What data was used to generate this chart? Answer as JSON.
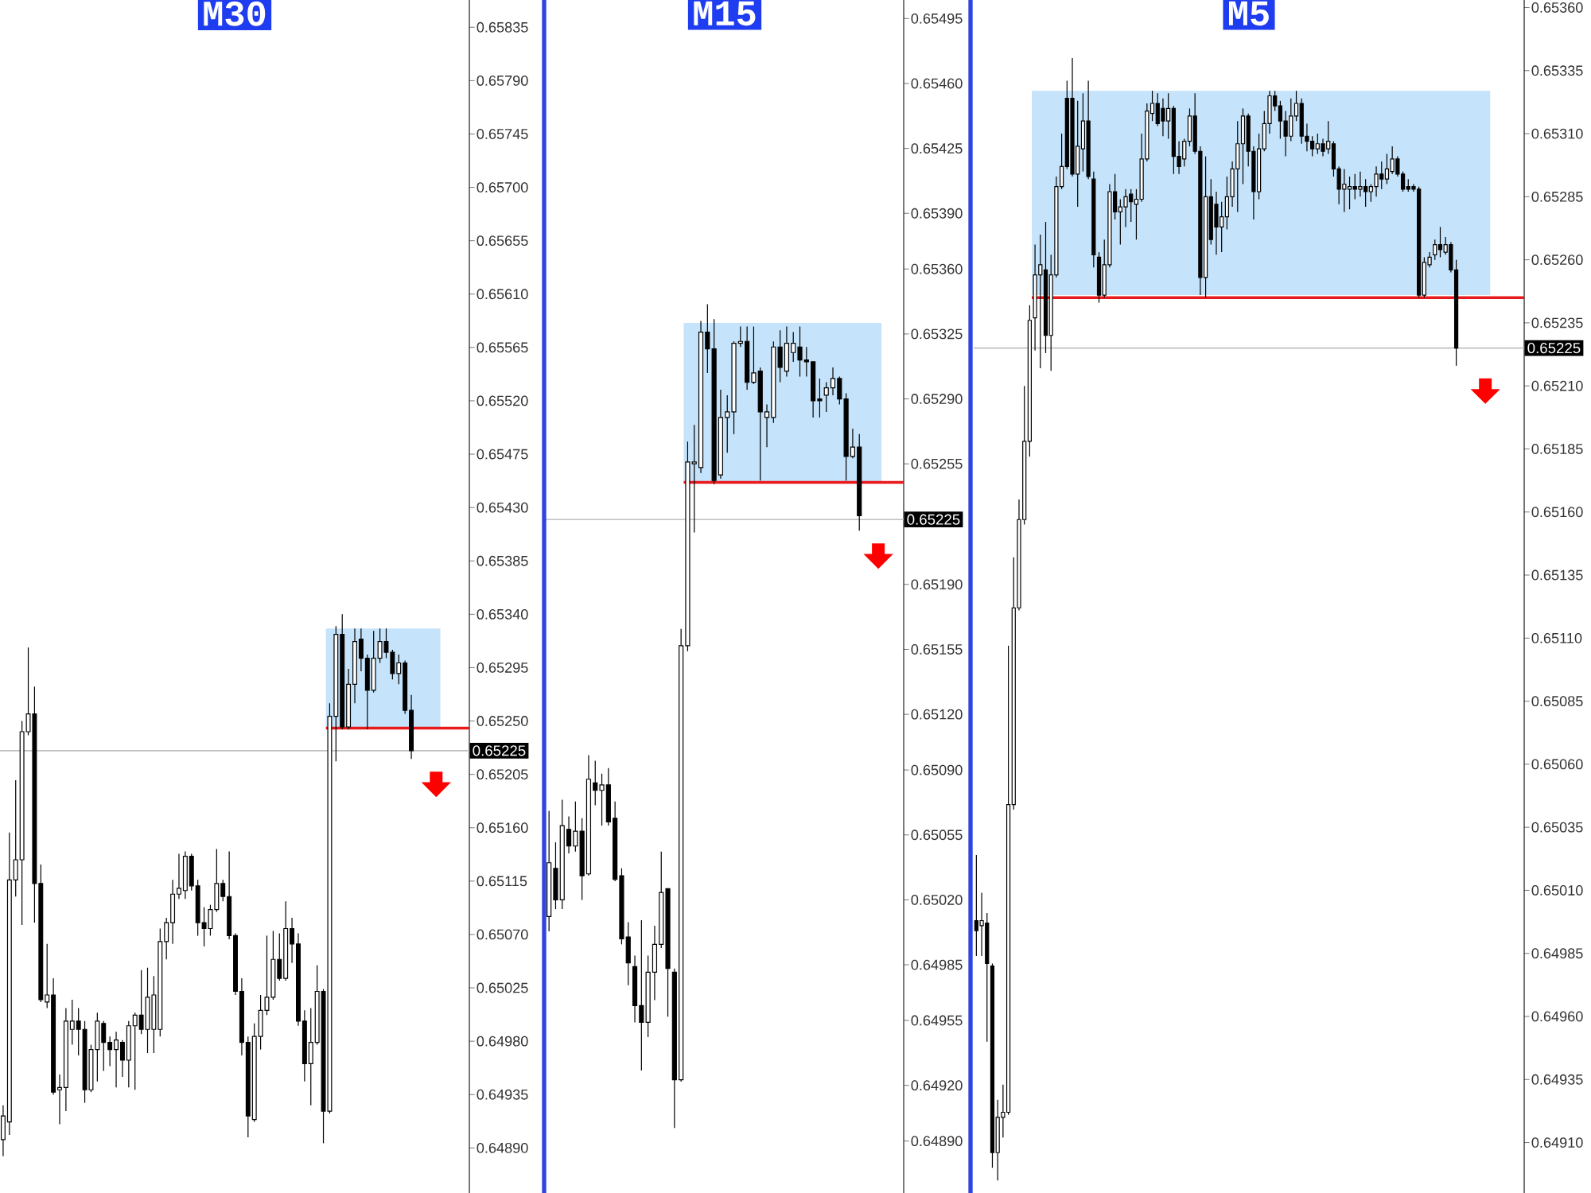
{
  "chart_data": [
    {
      "type": "candlestick",
      "title": "M30",
      "categories": [
        null,
        null,
        null,
        null,
        null,
        null,
        null,
        null,
        null,
        null,
        null,
        null,
        null,
        null,
        null,
        null,
        null,
        null,
        null,
        null,
        null,
        null,
        null,
        null,
        null,
        null,
        null,
        null,
        null,
        null,
        null,
        null,
        null,
        null,
        null,
        null,
        null,
        null,
        null,
        null,
        null,
        null,
        null,
        null,
        null,
        null,
        null,
        null,
        null,
        null,
        null,
        null,
        null,
        null,
        null,
        null,
        null,
        null,
        null,
        null,
        null,
        null,
        null,
        null,
        null,
        null
      ],
      "ohlc": [
        [
          0.64897,
          0.64926,
          0.64883,
          0.64917
        ],
        [
          0.64912,
          0.65156,
          0.64901,
          0.65116
        ],
        [
          0.65116,
          0.652,
          0.65102,
          0.65133
        ],
        [
          0.65133,
          0.6525,
          0.65078,
          0.65241
        ],
        [
          0.65241,
          0.65312,
          0.65238,
          0.65256
        ],
        [
          0.65256,
          0.65279,
          0.6508,
          0.65113
        ],
        [
          0.65113,
          0.65129,
          0.65013,
          0.65015
        ],
        [
          0.65013,
          0.65062,
          0.65008,
          0.65019
        ],
        [
          0.65019,
          0.65033,
          0.64935,
          0.64937
        ],
        [
          0.64939,
          0.64952,
          0.6491,
          0.64941
        ],
        [
          0.64941,
          0.65008,
          0.64921,
          0.64997
        ],
        [
          0.6499,
          0.65015,
          0.64977,
          0.64997
        ],
        [
          0.64997,
          0.65008,
          0.64968,
          0.6499
        ],
        [
          0.6499,
          0.64997,
          0.64928,
          0.64939
        ],
        [
          0.64939,
          0.64977,
          0.64937,
          0.64973
        ],
        [
          0.64973,
          0.65004,
          0.64946,
          0.64997
        ],
        [
          0.64995,
          0.64997,
          0.64955,
          0.64979
        ],
        [
          0.64979,
          0.64984,
          0.64959,
          0.64973
        ],
        [
          0.64973,
          0.64988,
          0.64941,
          0.64981
        ],
        [
          0.64979,
          0.64981,
          0.6495,
          0.64964
        ],
        [
          0.64964,
          0.64997,
          0.64941,
          0.64993
        ],
        [
          0.64993,
          0.65004,
          0.64939,
          0.65002
        ],
        [
          0.65002,
          0.6504,
          0.64986,
          0.6499
        ],
        [
          0.6499,
          0.65042,
          0.6497,
          0.65017
        ],
        [
          0.6499,
          0.65035,
          0.6497,
          0.65019
        ],
        [
          0.6499,
          0.65075,
          0.64984,
          0.65064
        ],
        [
          0.65064,
          0.65084,
          0.65049,
          0.6508
        ],
        [
          0.6508,
          0.65116,
          0.65062,
          0.65104
        ],
        [
          0.65104,
          0.65138,
          0.651,
          0.65109
        ],
        [
          0.65107,
          0.6514,
          0.651,
          0.65136
        ],
        [
          0.65136,
          0.65138,
          0.65107,
          0.65111
        ],
        [
          0.65111,
          0.65116,
          0.65069,
          0.6508
        ],
        [
          0.6508,
          0.65093,
          0.6506,
          0.65075
        ],
        [
          0.65075,
          0.65095,
          0.65069,
          0.65091
        ],
        [
          0.65091,
          0.65142,
          0.65089,
          0.65113
        ],
        [
          0.65113,
          0.65116,
          0.65098,
          0.65102
        ],
        [
          0.65102,
          0.6514,
          0.65066,
          0.65069
        ],
        [
          0.65069,
          0.65071,
          0.65019,
          0.65022
        ],
        [
          0.65022,
          0.65033,
          0.64968,
          0.64979
        ],
        [
          0.64979,
          0.64984,
          0.64899,
          0.64917
        ],
        [
          0.64914,
          0.64995,
          0.64912,
          0.64984
        ],
        [
          0.64984,
          0.65019,
          0.64973,
          0.65006
        ],
        [
          0.65006,
          0.65069,
          0.65002,
          0.65017
        ],
        [
          0.65017,
          0.65073,
          0.65015,
          0.65049
        ],
        [
          0.65049,
          0.65071,
          0.65031,
          0.65033
        ],
        [
          0.65033,
          0.65098,
          0.65031,
          0.65075
        ],
        [
          0.65075,
          0.65084,
          0.65046,
          0.65062
        ],
        [
          0.65062,
          0.65071,
          0.64993,
          0.64997
        ],
        [
          0.64997,
          0.65006,
          0.64946,
          0.64961
        ],
        [
          0.64961,
          0.65008,
          0.64926,
          0.64979
        ],
        [
          0.64979,
          0.65044,
          0.64977,
          0.65022
        ],
        [
          0.65022,
          0.65024,
          0.64894,
          0.64921
        ],
        [
          0.64921,
          0.65265,
          0.64919,
          0.65254
        ],
        [
          0.65254,
          0.6533,
          0.65216,
          0.65323
        ],
        [
          0.65323,
          0.6534,
          0.65243,
          0.65245
        ],
        [
          0.65245,
          0.65294,
          0.65243,
          0.65281
        ],
        [
          0.65281,
          0.65328,
          0.65265,
          0.65317
        ],
        [
          0.65319,
          0.65328,
          0.65292,
          0.65303
        ],
        [
          0.65303,
          0.65306,
          0.65243,
          0.65276
        ],
        [
          0.65276,
          0.65326,
          0.65274,
          0.65303
        ],
        [
          0.65303,
          0.65328,
          0.65299,
          0.65317
        ],
        [
          0.65317,
          0.65328,
          0.65303,
          0.65308
        ],
        [
          0.65308,
          0.6531,
          0.65285,
          0.6529
        ],
        [
          0.6529,
          0.65306,
          0.65281,
          0.65299
        ],
        [
          0.65299,
          0.65301,
          0.65256,
          0.65259
        ],
        [
          0.65259,
          0.65272,
          0.65218,
          0.65225
        ]
      ],
      "ylim": [
        0.64852,
        0.65858
      ],
      "yticks": [
        0.65835,
        {
          "value": 0.6579,
          "label": "0.65790"
        },
        0.65745,
        {
          "value": 0.657,
          "label": "0.65700"
        },
        0.65655,
        {
          "value": 0.6561,
          "label": "0.65610"
        },
        0.65565,
        {
          "value": 0.6552,
          "label": "0.65520"
        },
        0.65475,
        {
          "value": 0.6543,
          "label": "0.65430"
        },
        0.65385,
        {
          "value": 0.6534,
          "label": "0.65340"
        },
        0.65295,
        {
          "value": 0.6525,
          "label": "0.65250"
        },
        0.65205,
        {
          "value": 0.6516,
          "label": "0.65160"
        },
        0.65115,
        {
          "value": 0.6507,
          "label": "0.65070"
        },
        0.65025,
        {
          "value": 0.6498,
          "label": "0.64980"
        },
        0.64935,
        {
          "value": 0.6489,
          "label": "0.64890"
        }
      ],
      "bands": [
        {
          "axis": "y",
          "from": 0.65244,
          "to": 0.65328,
          "color": "#c5e3fa"
        }
      ],
      "ref_lines": [
        {
          "axis": "y",
          "value": 0.65225,
          "label": "0.65225",
          "color": "#c0c0c0"
        },
        {
          "axis": "y",
          "value": 0.65244,
          "color": "#e8191b"
        }
      ]
    },
    {
      "type": "candlestick",
      "title": "M15",
      "categories": [
        null,
        null,
        null,
        null,
        null,
        null,
        null,
        null,
        null,
        null,
        null,
        null,
        null,
        null,
        null,
        null,
        null,
        null,
        null,
        null,
        null,
        null,
        null,
        null,
        null,
        null,
        null,
        null,
        null,
        null,
        null,
        null,
        null,
        null,
        null,
        null,
        null,
        null,
        null,
        null,
        null,
        null,
        null,
        null,
        null,
        null,
        null,
        null
      ],
      "ohlc": [
        [
          0.65011,
          0.65068,
          0.65003,
          0.6504
        ],
        [
          0.65037,
          0.65051,
          0.65015,
          0.6502
        ],
        [
          0.6502,
          0.65074,
          0.65015,
          0.6506
        ],
        [
          0.65058,
          0.65065,
          0.65045,
          0.65049
        ],
        [
          0.65049,
          0.65073,
          0.65046,
          0.65057
        ],
        [
          0.65057,
          0.65064,
          0.6502,
          0.65033
        ],
        [
          0.65034,
          0.65098,
          0.65033,
          0.65085
        ],
        [
          0.65083,
          0.65095,
          0.65071,
          0.65079
        ],
        [
          0.65079,
          0.65088,
          0.6506,
          0.65082
        ],
        [
          0.65082,
          0.65091,
          0.6506,
          0.65062
        ],
        [
          0.65064,
          0.65073,
          0.6503,
          0.65031
        ],
        [
          0.65033,
          0.65037,
          0.64996,
          0.64999
        ],
        [
          0.65,
          0.65008,
          0.64974,
          0.64986
        ],
        [
          0.64984,
          0.6499,
          0.64954,
          0.64963
        ],
        [
          0.64963,
          0.65009,
          0.64928,
          0.64954
        ],
        [
          0.64954,
          0.6499,
          0.64946,
          0.64981
        ],
        [
          0.64981,
          0.65006,
          0.64966,
          0.64996
        ],
        [
          0.64996,
          0.65046,
          0.64994,
          0.65024
        ],
        [
          0.65026,
          0.65026,
          0.64957,
          0.64983
        ],
        [
          0.64981,
          0.64983,
          0.64897,
          0.64923
        ],
        [
          0.64923,
          0.65166,
          0.64922,
          0.65157
        ],
        [
          0.65157,
          0.65267,
          0.65154,
          0.65256
        ],
        [
          0.65255,
          0.65276,
          0.65218,
          0.65256
        ],
        [
          0.65253,
          0.65332,
          0.6525,
          0.65326
        ],
        [
          0.65326,
          0.65341,
          0.65304,
          0.65317
        ],
        [
          0.65317,
          0.65333,
          0.65244,
          0.65246
        ],
        [
          0.65249,
          0.65295,
          0.65247,
          0.6528
        ],
        [
          0.6528,
          0.65292,
          0.65261,
          0.65283
        ],
        [
          0.65283,
          0.65321,
          0.65271,
          0.6532
        ],
        [
          0.6532,
          0.65329,
          0.65318,
          0.65321
        ],
        [
          0.65321,
          0.65329,
          0.65295,
          0.65299
        ],
        [
          0.65299,
          0.65329,
          0.65298,
          0.65304
        ],
        [
          0.65305,
          0.65307,
          0.65246,
          0.65283
        ],
        [
          0.6528,
          0.65287,
          0.65264,
          0.65283
        ],
        [
          0.6528,
          0.65321,
          0.65277,
          0.65318
        ],
        [
          0.65318,
          0.65327,
          0.65299,
          0.65307
        ],
        [
          0.65305,
          0.65329,
          0.65302,
          0.6532
        ],
        [
          0.65315,
          0.65326,
          0.6531,
          0.6532
        ],
        [
          0.65318,
          0.65329,
          0.65302,
          0.65311
        ],
        [
          0.65311,
          0.65318,
          0.65302,
          0.6531
        ],
        [
          0.6531,
          0.6531,
          0.6528,
          0.65289
        ],
        [
          0.6529,
          0.65301,
          0.6528,
          0.65289
        ],
        [
          0.65292,
          0.65299,
          0.65283,
          0.65296
        ],
        [
          0.65296,
          0.65307,
          0.65292,
          0.65301
        ],
        [
          0.65301,
          0.65302,
          0.65287,
          0.6529
        ],
        [
          0.6529,
          0.65293,
          0.65246,
          0.65259
        ],
        [
          0.65259,
          0.65274,
          0.65258,
          0.65264
        ],
        [
          0.65264,
          0.65271,
          0.65219,
          0.65227
        ]
      ],
      "ylim": [
        0.64862,
        0.65505
      ],
      "yticks": [
        0.65495,
        {
          "value": 0.6546,
          "label": "0.65460"
        },
        0.65425,
        {
          "value": 0.6539,
          "label": "0.65390"
        },
        {
          "value": 0.6536,
          "label": "0.65360"
        },
        0.65325,
        {
          "value": 0.6529,
          "label": "0.65290"
        },
        0.65255,
        {
          "value": 0.6519,
          "label": "0.65190"
        },
        0.65155,
        {
          "value": 0.6512,
          "label": "0.65120"
        },
        {
          "value": 0.6509,
          "label": "0.65090"
        },
        0.65055,
        {
          "value": 0.6502,
          "label": "0.65020"
        },
        0.64985,
        0.64955,
        {
          "value": 0.6492,
          "label": "0.64920"
        },
        {
          "value": 0.6489,
          "label": "0.64890"
        }
      ],
      "bands": [
        {
          "axis": "y",
          "from": 0.65245,
          "to": 0.65331,
          "color": "#c5e3fa"
        }
      ],
      "ref_lines": [
        {
          "axis": "y",
          "value": 0.65225,
          "label": "0.65225",
          "color": "#c0c0c0"
        },
        {
          "axis": "y",
          "value": 0.65245,
          "color": "#e8191b"
        }
      ]
    },
    {
      "type": "candlestick",
      "title": "M5",
      "categories": [
        null,
        null,
        null,
        null,
        null,
        null,
        null,
        null,
        null,
        null,
        null,
        null,
        null,
        null,
        null,
        null,
        null,
        null,
        null,
        null,
        null,
        null,
        null,
        null,
        null,
        null,
        null,
        null,
        null,
        null,
        null,
        null,
        null,
        null,
        null,
        null,
        null,
        null,
        null,
        null,
        null,
        null,
        null,
        null,
        null,
        null,
        null,
        null,
        null,
        null,
        null,
        null,
        null,
        null,
        null,
        null,
        null,
        null,
        null,
        null,
        null,
        null,
        null,
        null,
        null,
        null,
        null,
        null,
        null,
        null,
        null,
        null,
        null,
        null,
        null,
        null,
        null,
        null,
        null,
        null,
        null,
        null,
        null,
        null,
        null,
        null,
        null,
        null,
        null,
        null,
        null
      ],
      "ohlc": [
        [
          0.64998,
          0.65024,
          0.64984,
          0.64994
        ],
        [
          0.64996,
          0.65009,
          0.64984,
          0.64998
        ],
        [
          0.64997,
          0.65001,
          0.6495,
          0.64981
        ],
        [
          0.6498,
          0.64981,
          0.649,
          0.64906
        ],
        [
          0.64906,
          0.64927,
          0.64895,
          0.6492
        ],
        [
          0.6492,
          0.64933,
          0.64912,
          0.64922
        ],
        [
          0.64922,
          0.65107,
          0.64921,
          0.65044
        ],
        [
          0.65044,
          0.65142,
          0.65042,
          0.65122
        ],
        [
          0.65122,
          0.65165,
          0.65121,
          0.65157
        ],
        [
          0.65157,
          0.6521,
          0.65155,
          0.65188
        ],
        [
          0.65188,
          0.65242,
          0.65182,
          0.65236
        ],
        [
          0.65237,
          0.65266,
          0.65224,
          0.65254
        ],
        [
          0.65254,
          0.6527,
          0.65217,
          0.65258
        ],
        [
          0.65256,
          0.65275,
          0.65223,
          0.6523
        ],
        [
          0.6523,
          0.65262,
          0.65216,
          0.65254
        ],
        [
          0.65254,
          0.65293,
          0.65253,
          0.65289
        ],
        [
          0.65289,
          0.6531,
          0.65288,
          0.65297
        ],
        [
          0.65324,
          0.65331,
          0.65296,
          0.65297
        ],
        [
          0.65324,
          0.6534,
          0.65293,
          0.65294
        ],
        [
          0.65294,
          0.65323,
          0.65281,
          0.65305
        ],
        [
          0.65304,
          0.65326,
          0.65295,
          0.65315
        ],
        [
          0.65315,
          0.65331,
          0.65292,
          0.65293
        ],
        [
          0.65292,
          0.65295,
          0.65257,
          0.65262
        ],
        [
          0.65261,
          0.65263,
          0.65243,
          0.65246
        ],
        [
          0.65246,
          0.65268,
          0.65245,
          0.65258
        ],
        [
          0.65258,
          0.6529,
          0.65257,
          0.65287
        ],
        [
          0.65287,
          0.65294,
          0.65276,
          0.65279
        ],
        [
          0.65279,
          0.65284,
          0.65266,
          0.65281
        ],
        [
          0.65281,
          0.65288,
          0.65273,
          0.65285
        ],
        [
          0.65286,
          0.65288,
          0.65275,
          0.65283
        ],
        [
          0.65282,
          0.65288,
          0.65268,
          0.65284
        ],
        [
          0.65284,
          0.6531,
          0.65283,
          0.653
        ],
        [
          0.653,
          0.65322,
          0.65299,
          0.65319
        ],
        [
          0.65318,
          0.65327,
          0.65315,
          0.65322
        ],
        [
          0.65322,
          0.65326,
          0.65313,
          0.65314
        ],
        [
          0.6532,
          0.65324,
          0.65309,
          0.65315
        ],
        [
          0.65315,
          0.65326,
          0.65308,
          0.6532
        ],
        [
          0.6532,
          0.65321,
          0.65294,
          0.65301
        ],
        [
          0.65301,
          0.65307,
          0.65294,
          0.65297
        ],
        [
          0.653,
          0.65308,
          0.65297,
          0.65307
        ],
        [
          0.65307,
          0.6532,
          0.65305,
          0.65317
        ],
        [
          0.65317,
          0.65326,
          0.65302,
          0.65303
        ],
        [
          0.65303,
          0.65305,
          0.65246,
          0.65253
        ],
        [
          0.65253,
          0.65301,
          0.65245,
          0.65285
        ],
        [
          0.65285,
          0.65292,
          0.65266,
          0.65268
        ],
        [
          0.65282,
          0.65287,
          0.65262,
          0.65273
        ],
        [
          0.65273,
          0.65283,
          0.65263,
          0.65277
        ],
        [
          0.65277,
          0.65293,
          0.65272,
          0.65285
        ],
        [
          0.65285,
          0.65299,
          0.65281,
          0.65296
        ],
        [
          0.65296,
          0.65315,
          0.65279,
          0.65306
        ],
        [
          0.65306,
          0.6532,
          0.6529,
          0.65317
        ],
        [
          0.65317,
          0.65318,
          0.65297,
          0.65303
        ],
        [
          0.65303,
          0.65305,
          0.65276,
          0.65287
        ],
        [
          0.65287,
          0.6531,
          0.65284,
          0.65304
        ],
        [
          0.65304,
          0.65319,
          0.65303,
          0.65314
        ],
        [
          0.65314,
          0.65327,
          0.6531,
          0.65325
        ],
        [
          0.65325,
          0.65327,
          0.65319,
          0.65321
        ],
        [
          0.65321,
          0.65323,
          0.65308,
          0.65315
        ],
        [
          0.65315,
          0.65319,
          0.65301,
          0.65309
        ],
        [
          0.65309,
          0.65324,
          0.65307,
          0.65317
        ],
        [
          0.65317,
          0.65327,
          0.65315,
          0.65322
        ],
        [
          0.65322,
          0.65324,
          0.65306,
          0.65309
        ],
        [
          0.65309,
          0.65314,
          0.65303,
          0.65307
        ],
        [
          0.65307,
          0.65309,
          0.65301,
          0.65304
        ],
        [
          0.65304,
          0.6531,
          0.65302,
          0.65306
        ],
        [
          0.65306,
          0.65308,
          0.65301,
          0.65303
        ],
        [
          0.65304,
          0.65315,
          0.65302,
          0.65307
        ],
        [
          0.65306,
          0.65307,
          0.65293,
          0.65296
        ],
        [
          0.65296,
          0.65297,
          0.65282,
          0.65288
        ],
        [
          0.65288,
          0.65296,
          0.65279,
          0.6529
        ],
        [
          0.65288,
          0.65293,
          0.6528,
          0.65289
        ],
        [
          0.65289,
          0.65294,
          0.65284,
          0.65288
        ],
        [
          0.65288,
          0.65295,
          0.65285,
          0.65289
        ],
        [
          0.65289,
          0.65292,
          0.65281,
          0.65287
        ],
        [
          0.65287,
          0.6529,
          0.65283,
          0.65289
        ],
        [
          0.65289,
          0.65297,
          0.65285,
          0.65294
        ],
        [
          0.65294,
          0.65299,
          0.65288,
          0.65292
        ],
        [
          0.65292,
          0.65302,
          0.6529,
          0.65296
        ],
        [
          0.65295,
          0.65305,
          0.65294,
          0.653
        ],
        [
          0.653,
          0.65301,
          0.65293,
          0.65294
        ],
        [
          0.65294,
          0.65295,
          0.65287,
          0.65288
        ],
        [
          0.65289,
          0.65292,
          0.65287,
          0.65288
        ],
        [
          0.65289,
          0.6529,
          0.65287,
          0.65288
        ],
        [
          0.65288,
          0.65289,
          0.65245,
          0.65246
        ],
        [
          0.65246,
          0.65261,
          0.65245,
          0.65259
        ],
        [
          0.65258,
          0.65263,
          0.65257,
          0.65261
        ],
        [
          0.65262,
          0.65268,
          0.6526,
          0.65266
        ],
        [
          0.65266,
          0.65273,
          0.65261,
          0.65264
        ],
        [
          0.65263,
          0.65269,
          0.65262,
          0.65266
        ],
        [
          0.65266,
          0.65267,
          0.65255,
          0.65256
        ],
        [
          0.65256,
          0.6526,
          0.65218,
          0.65225
        ]
      ],
      "ylim": [
        0.6489,
        0.65363
      ],
      "yticks": [
        {
          "value": 0.6536,
          "label": "0.65360"
        },
        0.65335,
        {
          "value": 0.6531,
          "label": "0.65310"
        },
        0.65285,
        {
          "value": 0.6526,
          "label": "0.65260"
        },
        0.65235,
        {
          "value": 0.6521,
          "label": "0.65210"
        },
        0.65185,
        {
          "value": 0.6516,
          "label": "0.65160"
        },
        0.65135,
        {
          "value": 0.6511,
          "label": "0.65110"
        },
        0.65085,
        {
          "value": 0.6506,
          "label": "0.65060"
        },
        0.65035,
        {
          "value": 0.6501,
          "label": "0.65010"
        },
        0.64985,
        {
          "value": 0.6496,
          "label": "0.64960"
        },
        0.64935,
        {
          "value": 0.6491,
          "label": "0.64910"
        }
      ],
      "bands": [
        {
          "axis": "y",
          "from": 0.65246,
          "to": 0.65327,
          "color": "#c5e3fa"
        }
      ],
      "ref_lines": [
        {
          "axis": "y",
          "value": 0.65225,
          "label": "0.65225",
          "color": "#c0c0c0"
        },
        {
          "axis": "y",
          "value": 0.65245,
          "color": "#e8191b"
        }
      ]
    }
  ]
}
